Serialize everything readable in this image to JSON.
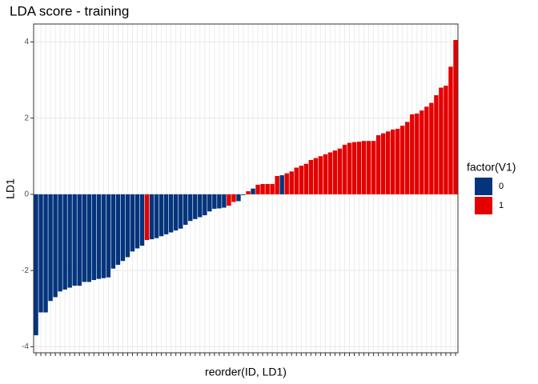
{
  "chart_data": {
    "type": "bar",
    "title": "LDA score - training",
    "x_label": "reorder(ID, LD1)",
    "y_label": "LD1",
    "legend_title": "factor(V1)",
    "categories": [
      null,
      null,
      null,
      null,
      null,
      null,
      null,
      null,
      null,
      null,
      null,
      null,
      null,
      null,
      null,
      null,
      null,
      null,
      null,
      null,
      null,
      null,
      null,
      null,
      null,
      null,
      null,
      null,
      null,
      null,
      null,
      null,
      null,
      null,
      null,
      null,
      null,
      null,
      null,
      null,
      null,
      null,
      null,
      null,
      null,
      null,
      null,
      null,
      null,
      null,
      null,
      null,
      null,
      null,
      null,
      null,
      null,
      null,
      null,
      null,
      null,
      null,
      null,
      null,
      null,
      null,
      null,
      null,
      null,
      null,
      null,
      null,
      null,
      null,
      null,
      null,
      null,
      null,
      null,
      null,
      null,
      null,
      null,
      null,
      null,
      null,
      null,
      null
    ],
    "series": [
      {
        "name": "0",
        "color": "#04347c",
        "values": [
          -3.7,
          -3.1,
          -3.1,
          -2.8,
          -2.7,
          -2.55,
          -2.5,
          -2.45,
          -2.4,
          -2.4,
          -2.3,
          -2.3,
          -2.25,
          -2.22,
          -2.2,
          -2.18,
          -1.95,
          -1.85,
          -1.75,
          -1.65,
          -1.5,
          -1.42,
          -1.35,
          null,
          -1.18,
          -1.15,
          -1.1,
          -1.05,
          -1.0,
          -0.95,
          -0.9,
          -0.8,
          -0.7,
          -0.65,
          -0.6,
          -0.55,
          -0.45,
          -0.38,
          -0.37,
          -0.35,
          null,
          null,
          -0.18,
          -0.02,
          null,
          0.15,
          null,
          null,
          null,
          null,
          null,
          0.5,
          null,
          null,
          null,
          null,
          null,
          null,
          null,
          null,
          null,
          null,
          null,
          null,
          null,
          null,
          null,
          null,
          null,
          null,
          null,
          null,
          null,
          null,
          null,
          null,
          null,
          null,
          null,
          null,
          null,
          null,
          null,
          null,
          null,
          null,
          null,
          null
        ]
      },
      {
        "name": "1",
        "color": "#e50000",
        "values": [
          null,
          null,
          null,
          null,
          null,
          null,
          null,
          null,
          null,
          null,
          null,
          null,
          null,
          null,
          null,
          null,
          null,
          null,
          null,
          null,
          null,
          null,
          null,
          -1.2,
          null,
          null,
          null,
          null,
          null,
          null,
          null,
          null,
          null,
          null,
          null,
          null,
          null,
          null,
          null,
          null,
          -0.3,
          -0.2,
          null,
          null,
          0.08,
          null,
          0.25,
          0.27,
          0.27,
          0.27,
          0.48,
          null,
          0.55,
          0.6,
          0.7,
          0.75,
          0.8,
          0.9,
          0.95,
          1.0,
          1.05,
          1.1,
          1.15,
          1.2,
          1.3,
          1.35,
          1.37,
          1.38,
          1.4,
          1.4,
          1.4,
          1.55,
          1.6,
          1.65,
          1.7,
          1.72,
          1.8,
          1.9,
          2.1,
          2.12,
          2.2,
          2.3,
          2.4,
          2.6,
          2.8,
          2.85,
          3.35,
          4.05
        ]
      }
    ],
    "ylim": [
      -4.16,
      4.47
    ],
    "yticks": [
      -4,
      -2,
      0,
      2,
      4
    ],
    "grid": true,
    "legend": "right"
  }
}
